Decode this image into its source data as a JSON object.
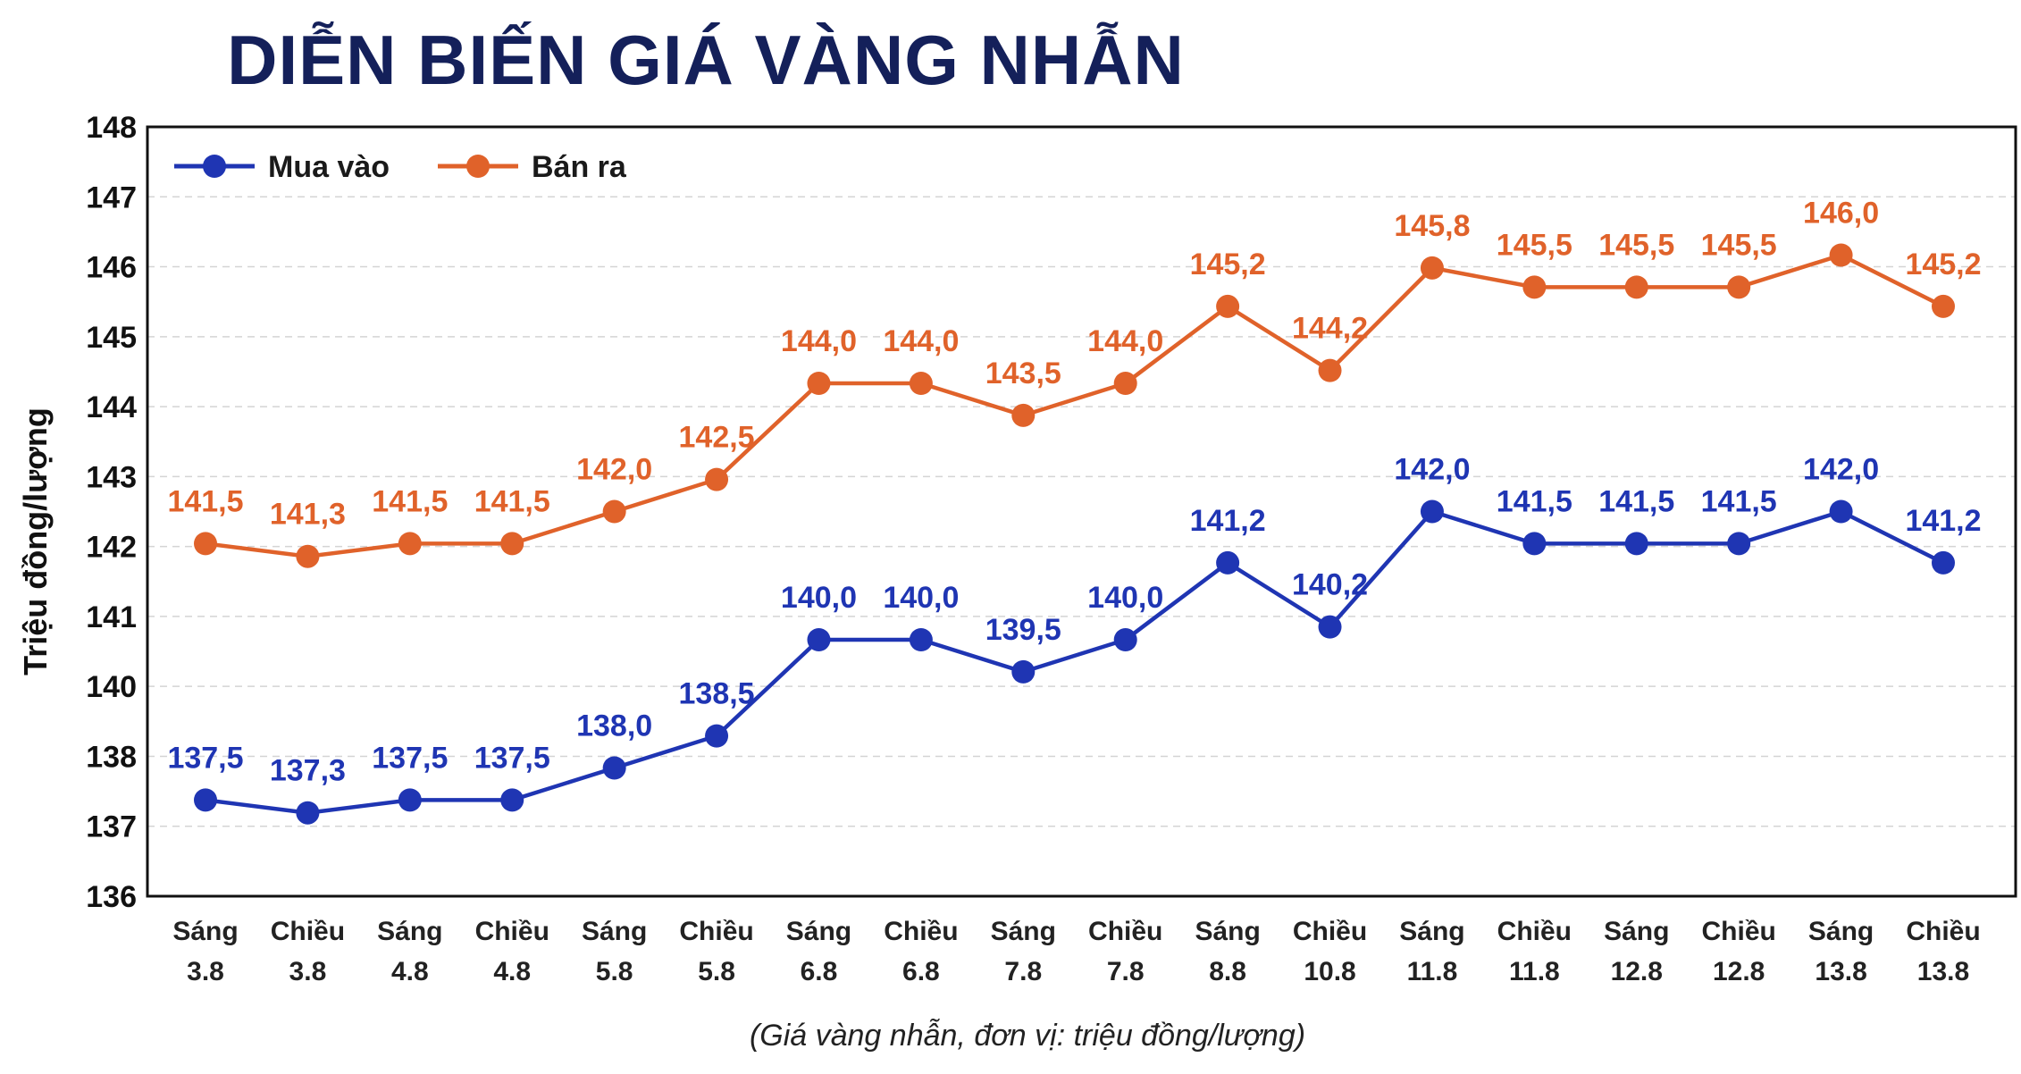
{
  "chart_data": {
    "type": "line",
    "title": "DIỄN BIẾN GIÁ VÀNG NHẪN",
    "ylabel": "Triệu đồng/lượng",
    "note": "(Giá vàng nhẫn, đơn vị: triệu đồng/lượng)",
    "ylim": [
      136,
      148
    ],
    "yticks": [
      "136",
      "137",
      "138",
      "140",
      "141",
      "142",
      "143",
      "144",
      "145",
      "146",
      "147",
      "148"
    ],
    "grid": true,
    "legend_position": "top-left",
    "categories": [
      [
        "Sáng",
        "3.8"
      ],
      [
        "Chiều",
        "3.8"
      ],
      [
        "Sáng",
        "4.8"
      ],
      [
        "Chiều",
        "4.8"
      ],
      [
        "Sáng",
        "5.8"
      ],
      [
        "Chiều",
        "5.8"
      ],
      [
        "Sáng",
        "6.8"
      ],
      [
        "Chiều",
        "6.8"
      ],
      [
        "Sáng",
        "7.8"
      ],
      [
        "Chiều",
        "7.8"
      ],
      [
        "Sáng",
        "8.8"
      ],
      [
        "Chiều",
        "10.8"
      ],
      [
        "Sáng",
        "11.8"
      ],
      [
        "Chiều",
        "11.8"
      ],
      [
        "Sáng",
        "12.8"
      ],
      [
        "Chiều",
        "12.8"
      ],
      [
        "Sáng",
        "13.8"
      ],
      [
        "Chiều",
        "13.8"
      ]
    ],
    "series": [
      {
        "name": "Mua vào",
        "color": "#1f35b3",
        "values": [
          137.5,
          137.3,
          137.5,
          137.5,
          138.0,
          138.5,
          140.0,
          140.0,
          139.5,
          140.0,
          141.2,
          140.2,
          142.0,
          141.5,
          141.5,
          141.5,
          142.0,
          141.2
        ],
        "labels": [
          "137,5",
          "137,3",
          "137,5",
          "137,5",
          "138,0",
          "138,5",
          "140,0",
          "140,0",
          "139,5",
          "140,0",
          "141,2",
          "140,2",
          "142,0",
          "141,5",
          "141,5",
          "141,5",
          "142,0",
          "141,2"
        ]
      },
      {
        "name": "Bán ra",
        "color": "#e0622a",
        "values": [
          141.5,
          141.3,
          141.5,
          141.5,
          142.0,
          142.5,
          144.0,
          144.0,
          143.5,
          144.0,
          145.2,
          144.2,
          145.8,
          145.5,
          145.5,
          145.5,
          146.0,
          145.2
        ],
        "labels": [
          "141,5",
          "141,3",
          "141,5",
          "141,5",
          "142,0",
          "142,5",
          "144,0",
          "144,0",
          "143,5",
          "144,0",
          "145,2",
          "144,2",
          "145,8",
          "145,5",
          "145,5",
          "145,5",
          "146,0",
          "145,2"
        ]
      }
    ]
  }
}
